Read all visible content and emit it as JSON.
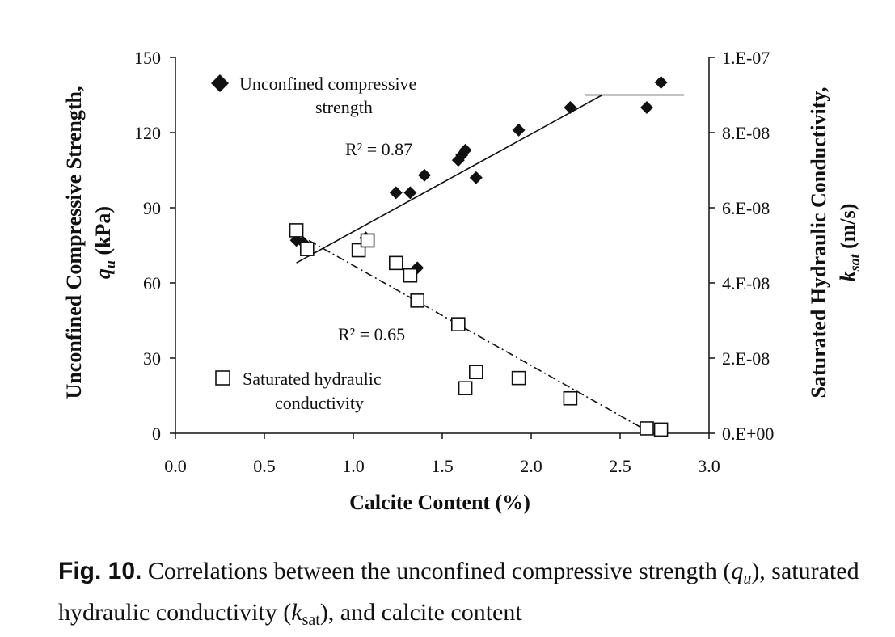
{
  "chart_data": {
    "type": "scatter",
    "xlabel": "Calcite Content (%)",
    "ylabel_left": [
      "Unconfined Compressive Strength,",
      "q",
      "u",
      " (kPa)"
    ],
    "ylabel_right": [
      "Saturated Hydraulic Conductivity,",
      "k",
      "sat",
      " (m/s)"
    ],
    "xlim": [
      0.0,
      3.0
    ],
    "ylim_left": [
      0,
      150
    ],
    "ylim_right": [
      0,
      1e-07
    ],
    "x_ticks": [
      "0.0",
      "0.5",
      "1.0",
      "1.5",
      "2.0",
      "2.5",
      "3.0"
    ],
    "y_left_ticks": [
      "0",
      "30",
      "60",
      "90",
      "120",
      "150"
    ],
    "y_right_ticks": [
      "0.E+00",
      "2.E-08",
      "4.E-08",
      "6.E-08",
      "8.E-08",
      "1.E-07"
    ],
    "series": [
      {
        "name": "Unconfined compressive strength",
        "legend_lines": [
          "Unconfined compressive",
          "strength"
        ],
        "axis": "left",
        "marker": "diamond",
        "points": [
          [
            0.68,
            77
          ],
          [
            0.72,
            76
          ],
          [
            1.07,
            78
          ],
          [
            1.24,
            96
          ],
          [
            1.32,
            96
          ],
          [
            1.36,
            66
          ],
          [
            1.4,
            103
          ],
          [
            1.59,
            109
          ],
          [
            1.61,
            111
          ],
          [
            1.63,
            113
          ],
          [
            1.69,
            102
          ],
          [
            1.93,
            121
          ],
          [
            2.22,
            130
          ],
          [
            2.65,
            130
          ],
          [
            2.73,
            140
          ]
        ]
      },
      {
        "name": "Saturated hydraulic conductivity",
        "legend_lines": [
          "Saturated hydraulic",
          "conductivity"
        ],
        "axis": "right",
        "marker": "square",
        "points": [
          [
            0.68,
            5.4e-08
          ],
          [
            0.74,
            4.9e-08
          ],
          [
            1.03,
            4.87e-08
          ],
          [
            1.08,
            5.13e-08
          ],
          [
            1.24,
            4.53e-08
          ],
          [
            1.32,
            4.2e-08
          ],
          [
            1.36,
            3.53e-08
          ],
          [
            1.59,
            2.9e-08
          ],
          [
            1.63,
            1.2e-08
          ],
          [
            1.69,
            1.63e-08
          ],
          [
            1.93,
            1.47e-08
          ],
          [
            2.22,
            9.3e-09
          ],
          [
            2.65,
            1.3e-09
          ],
          [
            2.73,
            1e-09
          ]
        ]
      }
    ],
    "trend_lines": [
      {
        "series": "Unconfined compressive strength",
        "style": "solid",
        "axis": "left",
        "points": [
          [
            0.68,
            68
          ],
          [
            2.4,
            135
          ]
        ],
        "r2_label": "R² = 0.87"
      },
      {
        "series": "Unconfined compressive strength",
        "style": "solid",
        "axis": "left",
        "points": [
          [
            2.3,
            135
          ],
          [
            2.86,
            135
          ]
        ]
      },
      {
        "series": "Saturated hydraulic conductivity",
        "style": "dash-dot",
        "axis": "right",
        "points": [
          [
            0.75,
            5.13e-08
          ],
          [
            2.62,
            1.5e-09
          ]
        ],
        "r2_label": "R² = 0.65"
      }
    ]
  },
  "caption": {
    "fig_label": "Fig. 10.",
    "text_1": " Correlations between the unconfined compressive strength (",
    "q": "q",
    "q_sub": "u",
    "text_2": "), saturated hydraulic conductivity (",
    "k": "k",
    "k_sub": "sat",
    "text_3": "), and calcite content"
  },
  "colors": {
    "ink": "#111111",
    "background": "#ffffff"
  }
}
